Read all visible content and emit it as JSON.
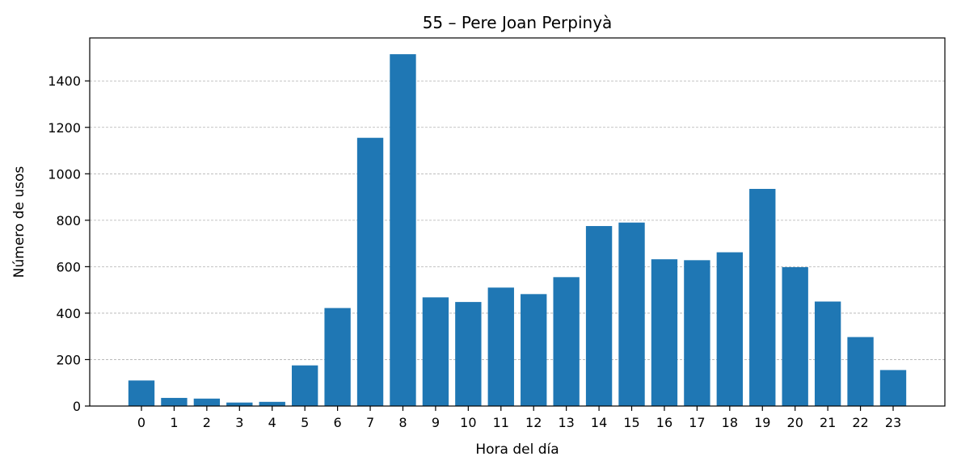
{
  "chart_data": {
    "type": "bar",
    "title": "55 – Pere Joan Perpinyà",
    "xlabel": "Hora del día",
    "ylabel": "Número de usos",
    "categories": [
      "0",
      "1",
      "2",
      "3",
      "4",
      "5",
      "6",
      "7",
      "8",
      "9",
      "10",
      "11",
      "12",
      "13",
      "14",
      "15",
      "16",
      "17",
      "18",
      "19",
      "20",
      "21",
      "22",
      "23"
    ],
    "values": [
      110,
      35,
      32,
      15,
      18,
      175,
      422,
      1155,
      1515,
      468,
      448,
      510,
      482,
      555,
      775,
      790,
      632,
      628,
      662,
      935,
      598,
      450,
      297,
      155
    ],
    "ylim": [
      0,
      1585
    ],
    "yticks": [
      0,
      200,
      400,
      600,
      800,
      1000,
      1200,
      1400
    ],
    "grid": "y",
    "bar_color": "#1f77b4"
  }
}
